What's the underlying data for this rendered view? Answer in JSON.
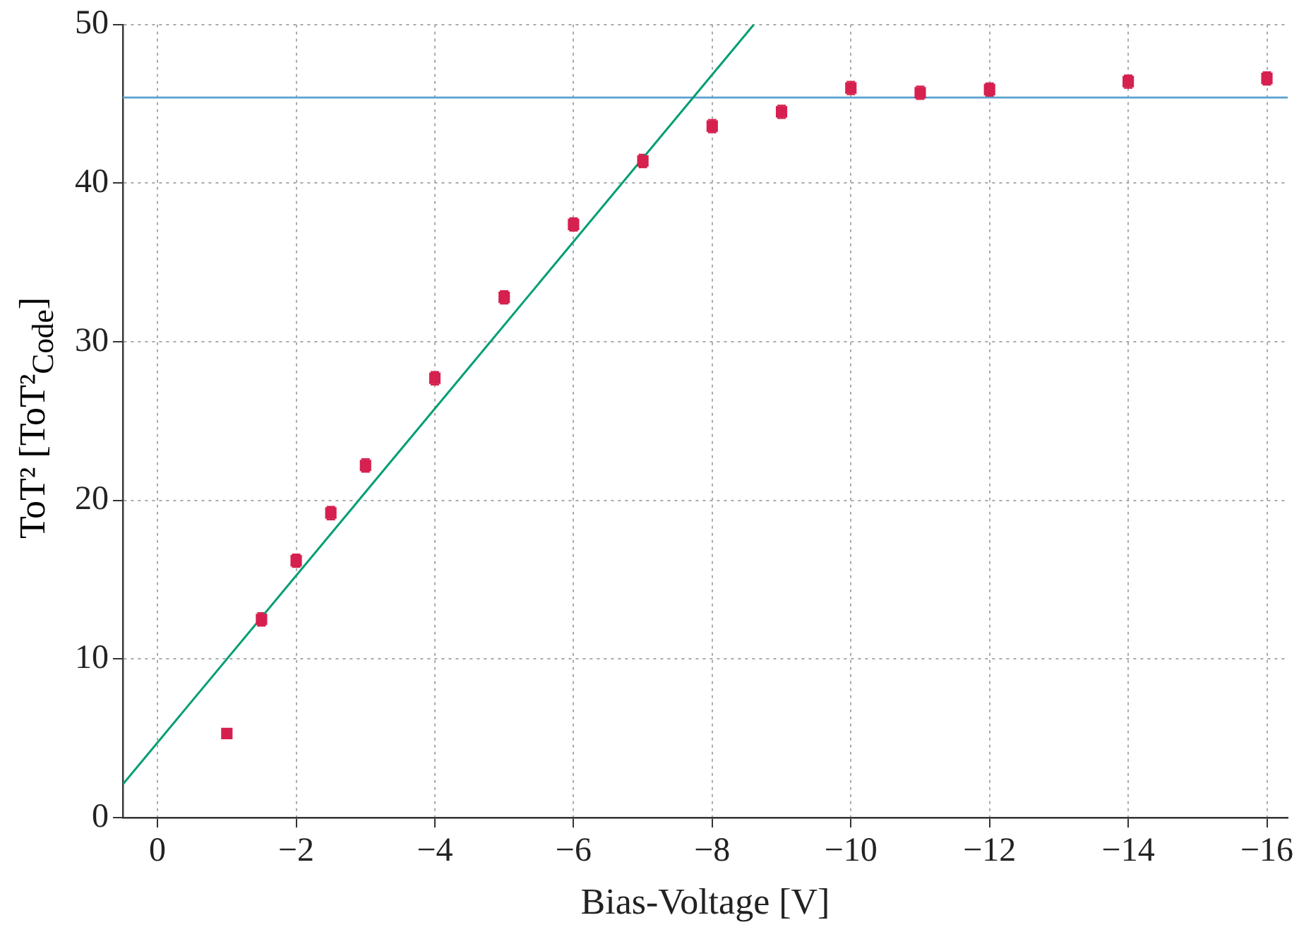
{
  "chart_data": {
    "type": "scatter",
    "xlabel": "Bias-Voltage [V]",
    "ylabel": "ToT² [ToT²$_{Code}$]",
    "xlim": [
      0.5,
      -16.3
    ],
    "xticks": [
      {
        "value": 0,
        "label": "0"
      },
      {
        "value": -2,
        "label": "−2"
      },
      {
        "value": -4,
        "label": "−4"
      },
      {
        "value": -6,
        "label": "−6"
      },
      {
        "value": -8,
        "label": "−8"
      },
      {
        "value": -10,
        "label": "−10"
      },
      {
        "value": -12,
        "label": "−12"
      },
      {
        "value": -14,
        "label": "−14"
      },
      {
        "value": -16,
        "label": "−16"
      }
    ],
    "ylim": [
      0,
      50
    ],
    "yticks": [
      0,
      10,
      20,
      30,
      40,
      50
    ],
    "grid": true,
    "marker": "square",
    "series": [
      {
        "type": "scatter",
        "color": "#d6204f",
        "x": [
          -1,
          -1.5,
          -2,
          -2.5,
          -3,
          -4,
          -5,
          -6,
          -7,
          -8,
          -9,
          -10,
          -11,
          -12,
          -14,
          -16
        ],
        "values": [
          5.3,
          12.5,
          16.2,
          19.2,
          22.2,
          27.7,
          32.8,
          37.4,
          41.4,
          43.6,
          44.5,
          46.0,
          45.7,
          45.9,
          46.4,
          46.6
        ],
        "errors": [
          null,
          0.4,
          0.4,
          0.4,
          0.4,
          0.4,
          0.4,
          0.4,
          0.4,
          0.4,
          0.4,
          0.4,
          0.4,
          0.4,
          0.4,
          0.4
        ]
      },
      {
        "type": "line",
        "color": "#009e73",
        "x": [
          0.5,
          -8.6
        ],
        "values": [
          2.1,
          50
        ],
        "marker": "none",
        "line_style": "solid"
      }
    ],
    "ref_lines": [
      {
        "axis": "y",
        "value": 45.4,
        "color": "#5ba0d0",
        "line_style": "solid"
      }
    ]
  }
}
